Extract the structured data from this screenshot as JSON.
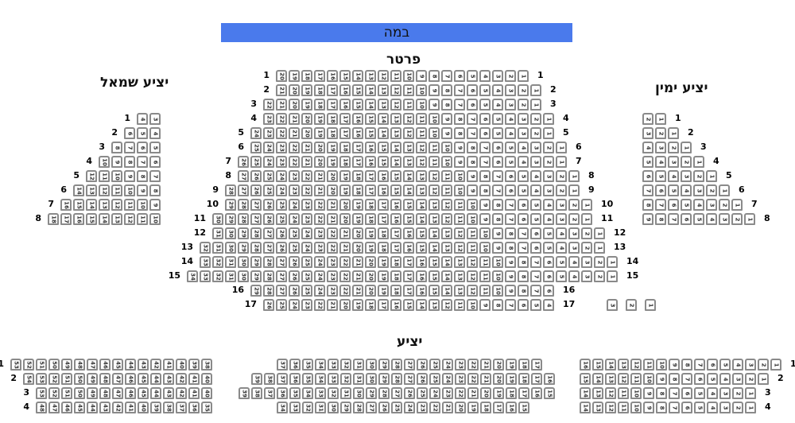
{
  "stage": {
    "label": "במה",
    "color": "#4a7aec"
  },
  "sections": [
    {
      "id": "orchestra",
      "title": "פרטר",
      "rows": [
        {
          "label": "1",
          "from": 20,
          "to": 1
        },
        {
          "label": "2",
          "from": 21,
          "to": 1
        },
        {
          "label": "3",
          "from": 22,
          "to": 1
        },
        {
          "label": "4",
          "from": 23,
          "to": 1
        },
        {
          "label": "5",
          "from": 24,
          "to": 1
        },
        {
          "label": "6",
          "from": 25,
          "to": 1
        },
        {
          "label": "7",
          "from": 26,
          "to": 1
        },
        {
          "label": "8",
          "from": 27,
          "to": 1
        },
        {
          "label": "9",
          "from": 28,
          "to": 1
        },
        {
          "label": "10",
          "from": 29,
          "to": 1
        },
        {
          "label": "11",
          "from": 30,
          "to": 1
        },
        {
          "label": "12",
          "from": 31,
          "to": 1
        },
        {
          "label": "13",
          "from": 32,
          "to": 1
        },
        {
          "label": "14",
          "from": 33,
          "to": 1
        },
        {
          "label": "15",
          "from": 34,
          "to": 1
        },
        {
          "label": "16",
          "from": 29,
          "to": 6
        },
        {
          "label": "17",
          "from": 26,
          "to": 4,
          "extra_from": 3,
          "extra_to": 1
        }
      ]
    },
    {
      "id": "balcony-left",
      "title": "יציע שמאל",
      "rows": [
        {
          "label": "1",
          "from": 4,
          "to": 3
        },
        {
          "label": "2",
          "from": 6,
          "to": 4
        },
        {
          "label": "3",
          "from": 8,
          "to": 5
        },
        {
          "label": "4",
          "from": 10,
          "to": 6
        },
        {
          "label": "5",
          "from": 12,
          "to": 7
        },
        {
          "label": "6",
          "from": 14,
          "to": 8
        },
        {
          "label": "7",
          "from": 16,
          "to": 9
        },
        {
          "label": "8",
          "from": 18,
          "to": 10
        }
      ]
    },
    {
      "id": "balcony-right",
      "title": "יציע ימין",
      "rows": [
        {
          "label": "1",
          "from": 2,
          "to": 1
        },
        {
          "label": "2",
          "from": 3,
          "to": 1
        },
        {
          "label": "3",
          "from": 4,
          "to": 1
        },
        {
          "label": "4",
          "from": 5,
          "to": 1
        },
        {
          "label": "5",
          "from": 6,
          "to": 1
        },
        {
          "label": "6",
          "from": 7,
          "to": 1
        },
        {
          "label": "7",
          "from": 8,
          "to": 1
        },
        {
          "label": "8",
          "from": 9,
          "to": 1
        }
      ]
    },
    {
      "id": "gallery",
      "title": "יציע",
      "blocks": [
        {
          "id": "gallery-left",
          "rows": [
            {
              "label": "1",
              "from": 53,
              "to": 38
            },
            {
              "label": "2",
              "from": 54,
              "to": 40
            },
            {
              "label": "3",
              "from": 53,
              "to": 40
            },
            {
              "label": "4",
              "from": 48,
              "to": 35
            }
          ]
        },
        {
          "id": "gallery-center",
          "rows": [
            {
              "label": "",
              "from": 37,
              "to": 17
            },
            {
              "label": "",
              "from": 39,
              "to": 16
            },
            {
              "label": "",
              "from": 39,
              "to": 15
            },
            {
              "label": "",
              "from": 34,
              "to": 15
            }
          ]
        },
        {
          "id": "gallery-right",
          "rows": [
            {
              "label": "1",
              "from": 16,
              "to": 1
            },
            {
              "label": "2",
              "from": 15,
              "to": 1
            },
            {
              "label": "3",
              "from": 14,
              "to": 1
            },
            {
              "label": "4",
              "from": 14,
              "to": 1
            }
          ]
        }
      ]
    }
  ]
}
